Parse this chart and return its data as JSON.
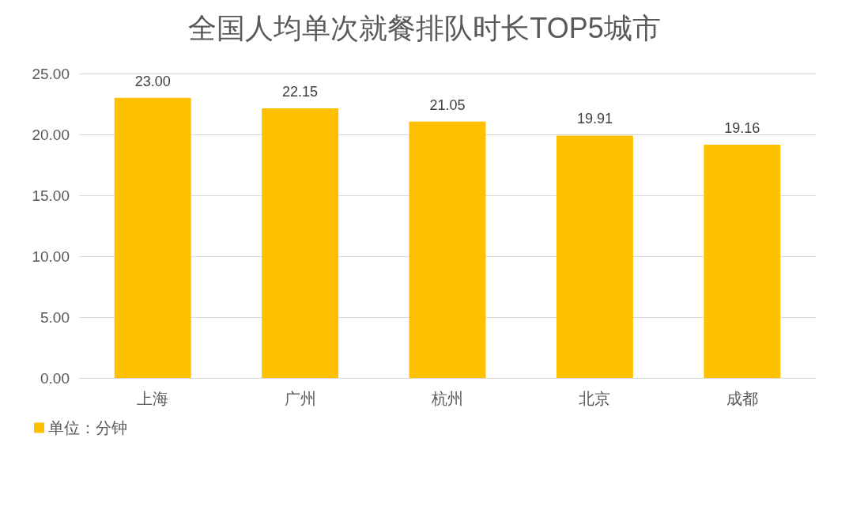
{
  "chart_data": {
    "type": "bar",
    "title": "全国人均单次就餐排队时长TOP5城市",
    "categories": [
      "上海",
      "广州",
      "杭州",
      "北京",
      "成都"
    ],
    "series": [
      {
        "name": "单位：分钟",
        "color": "#ffc000",
        "values": [
          23.0,
          22.15,
          21.05,
          19.91,
          19.16
        ],
        "value_labels": [
          "23.00",
          "22.15",
          "21.05",
          "19.91",
          "19.16"
        ]
      }
    ],
    "ylim": [
      0,
      25
    ],
    "yticks": [
      {
        "value": 0,
        "label": "0.00"
      },
      {
        "value": 5,
        "label": "5.00"
      },
      {
        "value": 10,
        "label": "10.00"
      },
      {
        "value": 15,
        "label": "15.00"
      },
      {
        "value": 20,
        "label": "20.00"
      },
      {
        "value": 25,
        "label": "25.00"
      }
    ],
    "grid": "y",
    "legend": "bottom left"
  }
}
